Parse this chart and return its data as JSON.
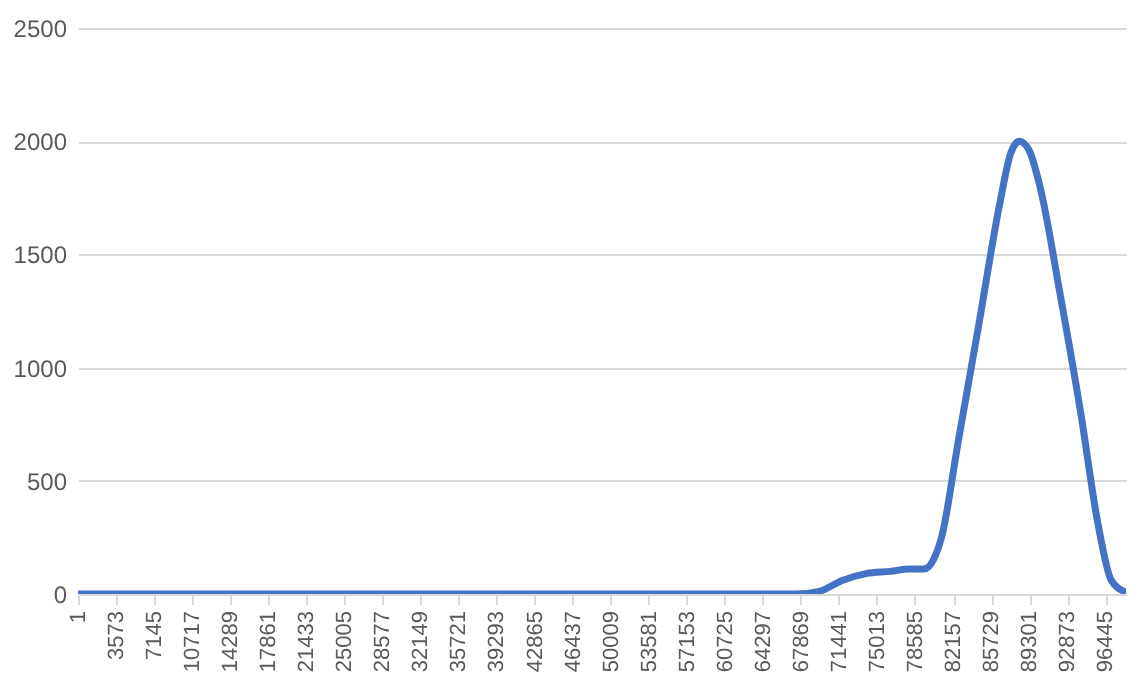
{
  "chart_data": {
    "type": "line",
    "xlim": [
      1,
      98400
    ],
    "ylim": [
      0,
      2500
    ],
    "yticks": [
      0,
      500,
      1000,
      1500,
      2000,
      2500
    ],
    "xticks": [
      1,
      3573,
      7145,
      10717,
      14289,
      17861,
      21433,
      25005,
      28577,
      32149,
      35721,
      39293,
      42865,
      46437,
      50009,
      53581,
      57153,
      60725,
      64297,
      67869,
      71441,
      75013,
      78585,
      82157,
      85729,
      89301,
      92873,
      96445
    ],
    "grid": "y",
    "marker": "none",
    "line_style": "solid",
    "series": [
      {
        "color": "#4472c4",
        "x": [
          1,
          67400,
          69500,
          71760,
          74000,
          76290,
          78000,
          79410,
          80300,
          81080,
          82670,
          84580,
          86490,
          87600,
          88400,
          89300,
          90320,
          92230,
          94150,
          95730,
          97020,
          98300
        ],
        "values": [
          0,
          0,
          10,
          60,
          90,
          100,
          110,
          110,
          150,
          250,
          680,
          1190,
          1710,
          1950,
          2000,
          1960,
          1800,
          1320,
          800,
          320,
          60,
          10
        ]
      }
    ]
  }
}
